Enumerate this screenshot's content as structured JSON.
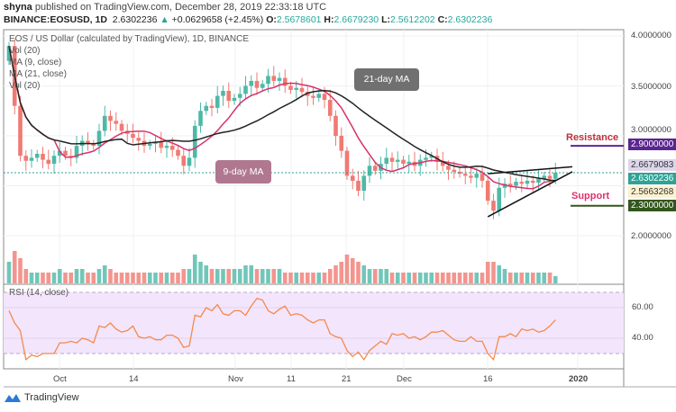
{
  "header": {
    "author": "shyna",
    "published": "published on TradingView.com, December 28, 2019 22:33:18 UTC",
    "symbol": "BINANCE:EOSUSD, 1D",
    "price": "2.6302236",
    "change": "+0.0629658 (+2.45%)",
    "o_label": "O:",
    "o": "2.5678601",
    "h_label": "H:",
    "h": "2.6679230",
    "l_label": "L:",
    "l": "2.5612202",
    "c_label": "C:",
    "c": "2.6302236"
  },
  "legend": {
    "title": "EOS / US Dollar (calculated by TradingView), 1D, BINANCE",
    "vol": "Vol (20)",
    "ma1": "MA (9, close)",
    "ma2": "MA (21, close)",
    "vol2": "Vol (20)"
  },
  "annotations": {
    "ma21": "21-day MA",
    "ma9": "9-day MA",
    "resistance": "Resistance",
    "support": "Support"
  },
  "price_axis": {
    "ticks": [
      "4.0000000",
      "3.5000000",
      "3.0000000",
      "2.0000000"
    ],
    "resistance": "2.9000000",
    "high": "2.6679083",
    "last": "2.6302236",
    "open": "2.5663268",
    "support": "2.3000000"
  },
  "rsi": {
    "label": "RSI (14, close)",
    "ticks": [
      "60.00",
      "40.00"
    ]
  },
  "x_axis": {
    "ticks": [
      "Oct",
      "14",
      "Nov",
      "11",
      "21",
      "Dec",
      "16",
      "2020"
    ]
  },
  "footer": {
    "brand": "TradingView"
  },
  "colors": {
    "up": "#4fb8a8",
    "down": "#f07a72",
    "ma9": "#d6336c",
    "ma21": "#222222",
    "rsi": "#f58a4a",
    "rsi_band": "#f3e5fc",
    "resistance": "#5b2590",
    "support": "#33561d"
  },
  "chart_data": {
    "type": "candlestick",
    "start_date": "2019-09-22",
    "end_date": "2019-12-28",
    "ylim": [
      1.55,
      4.05
    ],
    "close": [
      3.9,
      3.3,
      2.8,
      2.75,
      2.78,
      2.82,
      2.76,
      2.72,
      2.8,
      2.85,
      2.8,
      2.78,
      2.9,
      2.95,
      2.92,
      2.9,
      3.05,
      3.2,
      3.15,
      3.12,
      3.05,
      3.02,
      2.98,
      2.95,
      2.9,
      2.92,
      2.94,
      2.88,
      2.9,
      2.86,
      2.8,
      2.7,
      2.78,
      3.1,
      3.25,
      3.3,
      3.28,
      3.4,
      3.45,
      3.35,
      3.38,
      3.42,
      3.5,
      3.55,
      3.48,
      3.52,
      3.6,
      3.55,
      3.58,
      3.5,
      3.46,
      3.48,
      3.44,
      3.4,
      3.38,
      3.42,
      3.36,
      3.2,
      3.0,
      2.85,
      2.6,
      2.55,
      2.45,
      2.6,
      2.7,
      2.65,
      2.72,
      2.78,
      2.74,
      2.76,
      2.72,
      2.74,
      2.7,
      2.76,
      2.78,
      2.8,
      2.74,
      2.7,
      2.66,
      2.64,
      2.62,
      2.6,
      2.58,
      2.62,
      2.55,
      2.35,
      2.25,
      2.48,
      2.52,
      2.5,
      2.54,
      2.52,
      2.55,
      2.53,
      2.57,
      2.6,
      2.57,
      2.63
    ],
    "volume": [
      6,
      9,
      7,
      4,
      3,
      3,
      3,
      3,
      3,
      4,
      3,
      3,
      4,
      4,
      3,
      3,
      4,
      5,
      4,
      3,
      3,
      3,
      3,
      3,
      3,
      3,
      3,
      3,
      3,
      3,
      3,
      4,
      4,
      8,
      6,
      5,
      4,
      4,
      4,
      4,
      4,
      4,
      5,
      5,
      4,
      4,
      4,
      4,
      4,
      3,
      3,
      3,
      3,
      3,
      3,
      3,
      3,
      4,
      5,
      6,
      8,
      7,
      6,
      5,
      4,
      4,
      4,
      4,
      3,
      3,
      3,
      3,
      3,
      3,
      3,
      3,
      3,
      3,
      3,
      3,
      3,
      3,
      3,
      3,
      3,
      6,
      6,
      5,
      4,
      3,
      3,
      3,
      3,
      3,
      3,
      3,
      3,
      2
    ],
    "rsi": [
      58,
      50,
      45,
      26,
      29,
      28,
      30,
      30,
      30,
      37,
      37,
      38,
      37,
      40,
      39,
      37,
      48,
      47,
      50,
      46,
      44,
      45,
      48,
      41,
      40,
      41,
      39,
      39,
      42,
      42,
      40,
      34,
      35,
      55,
      54,
      60,
      58,
      62,
      56,
      55,
      58,
      58,
      55,
      61,
      66,
      65,
      58,
      56,
      59,
      61,
      55,
      56,
      55,
      52,
      50,
      52,
      52,
      43,
      41,
      40,
      32,
      28,
      31,
      26,
      32,
      35,
      38,
      36,
      43,
      42,
      43,
      40,
      41,
      39,
      41,
      44,
      44,
      45,
      42,
      39,
      38,
      38,
      41,
      38,
      38,
      30,
      26,
      41,
      41,
      43,
      41,
      46,
      45,
      46,
      44,
      45,
      48,
      52
    ],
    "rsi_ylim": [
      20,
      75
    ],
    "rsi_bands": [
      30,
      70
    ],
    "ma_periods": [
      9,
      21
    ],
    "horizontal_levels": {
      "resistance": 2.9,
      "support": 2.3
    },
    "triangle": {
      "upper": [
        [
          "2019-12-16",
          2.62
        ],
        [
          "2019-12-31",
          2.69
        ]
      ],
      "lower": [
        [
          "2019-12-16",
          2.19
        ],
        [
          "2019-12-31",
          2.64
        ]
      ]
    }
  }
}
